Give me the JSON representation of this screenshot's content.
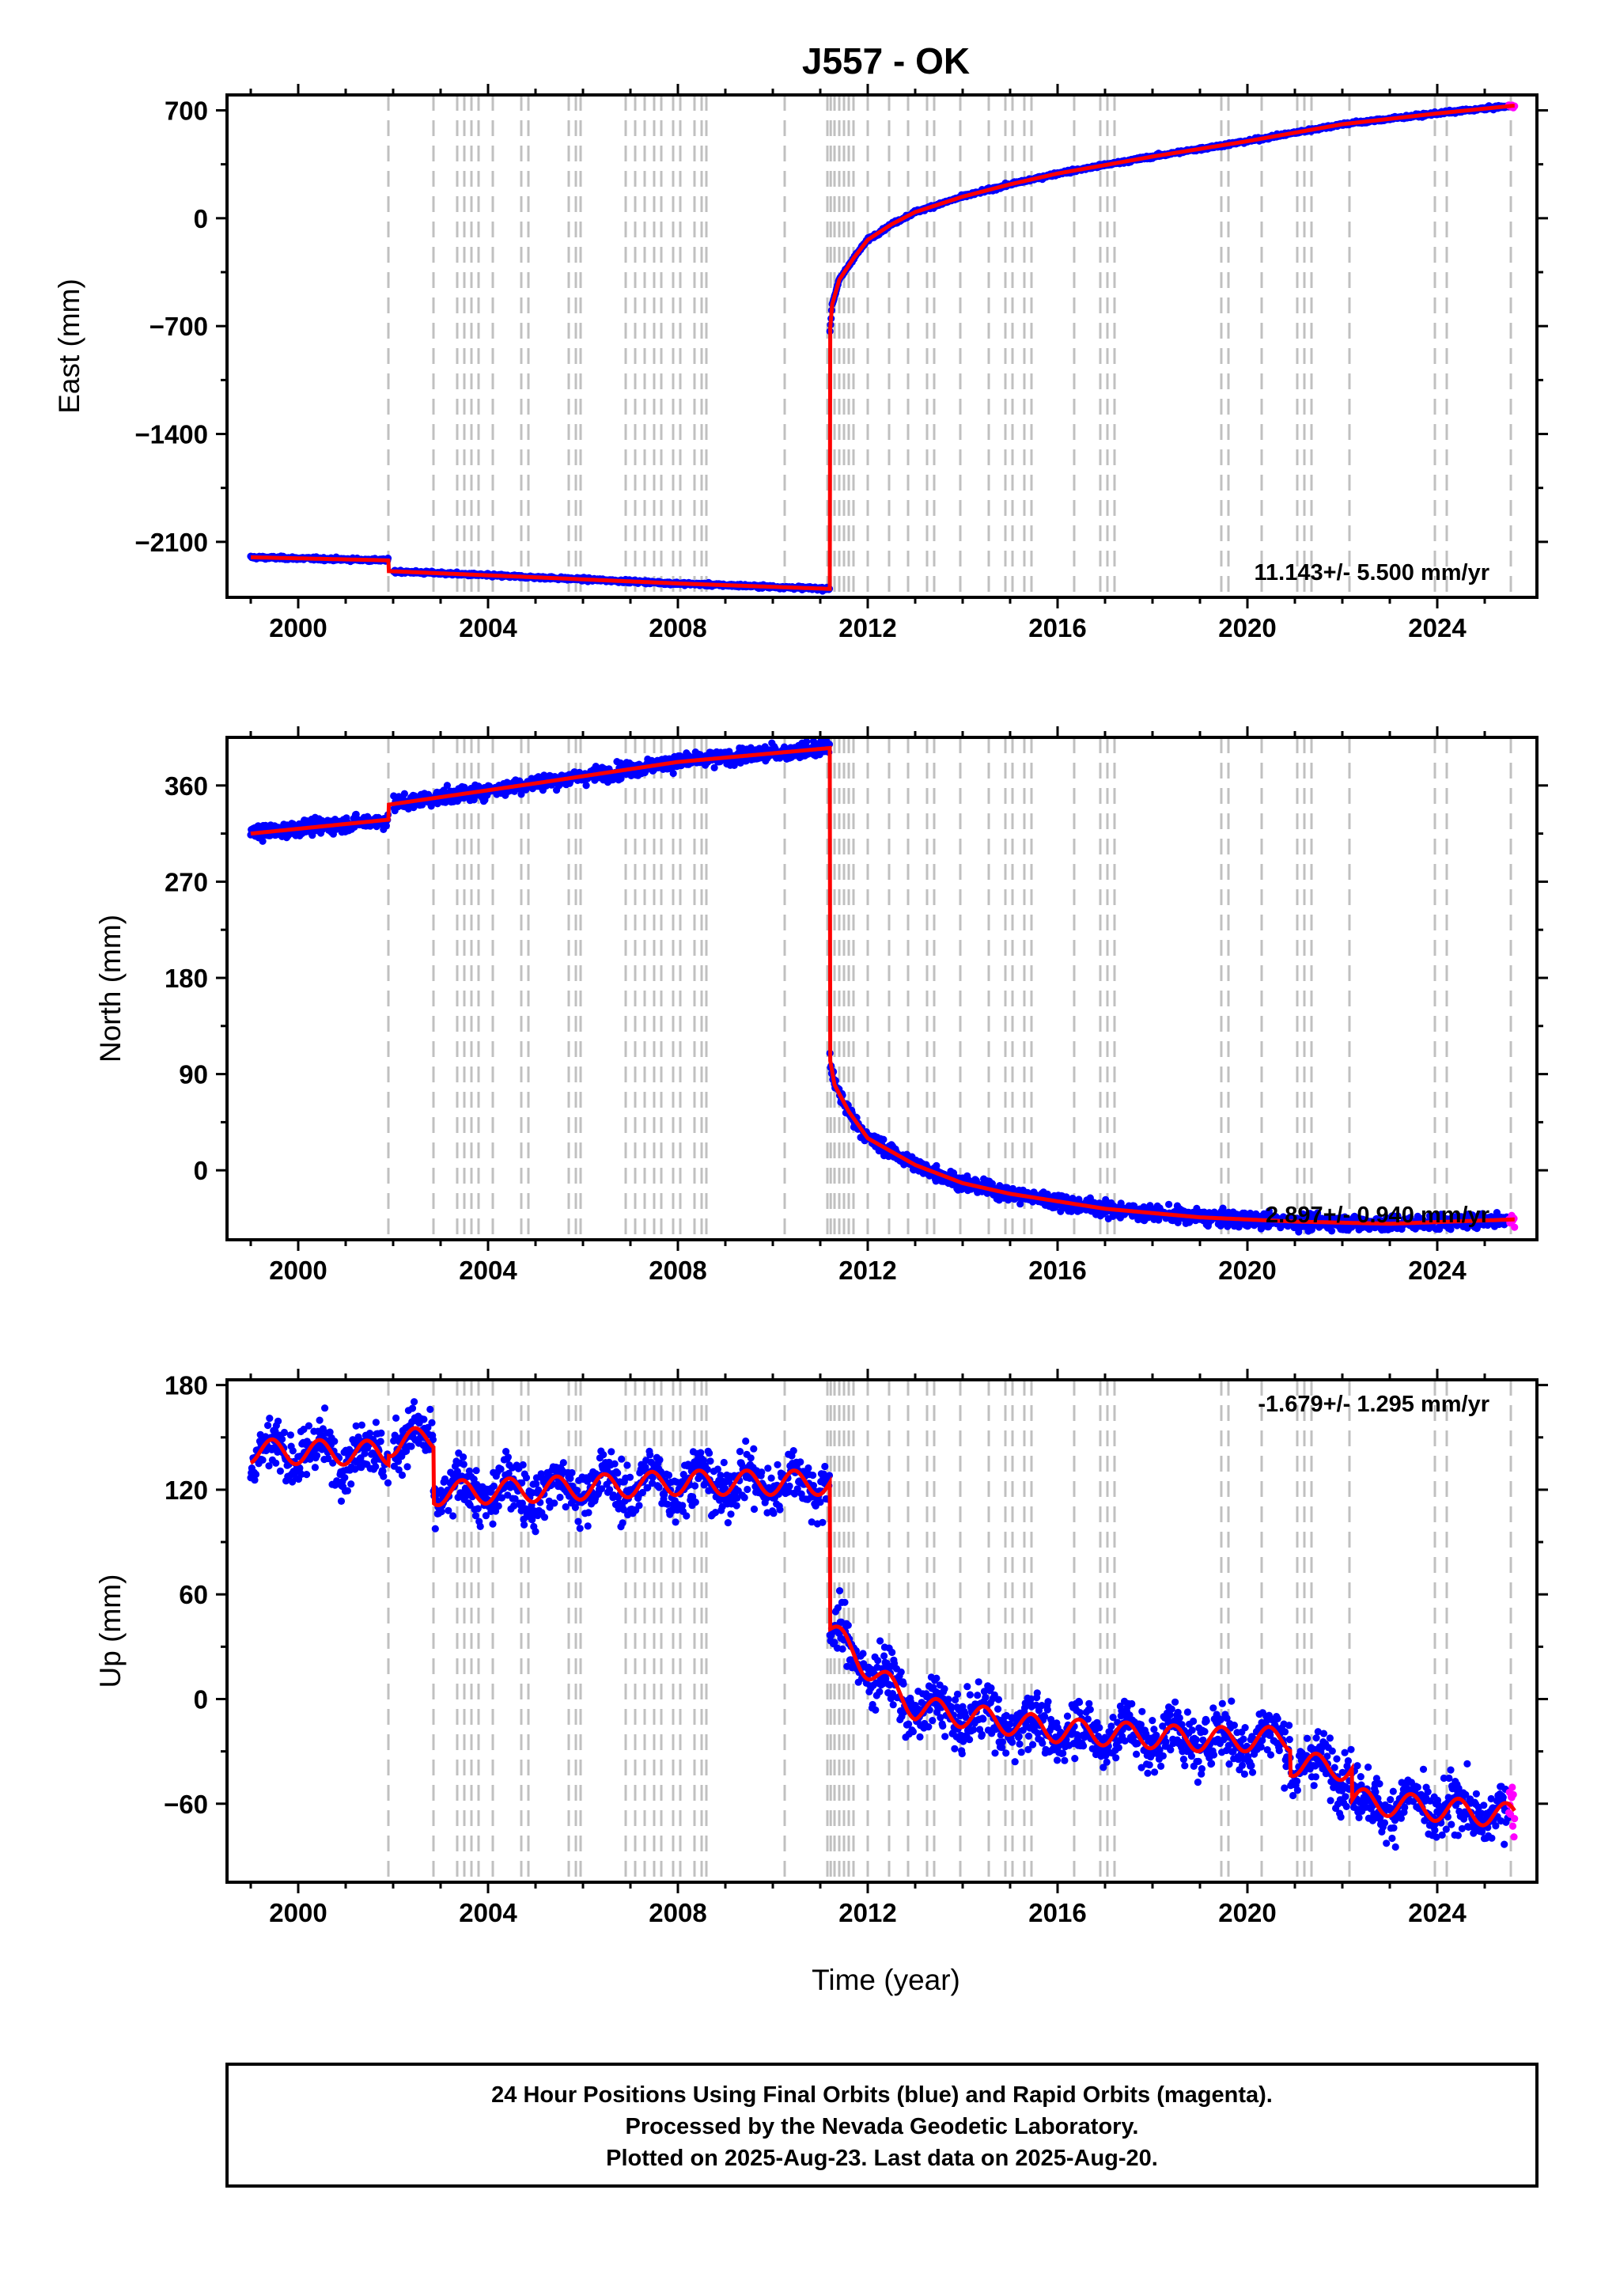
{
  "title": "J557 - OK",
  "xlabel": "Time (year)",
  "x_ticks": [
    2000,
    2004,
    2008,
    2012,
    2016,
    2020,
    2024
  ],
  "footer": {
    "line1": "24 Hour Positions Using Final Orbits (blue) and Rapid Orbits (magenta).",
    "line2": "Processed by the Nevada Geodetic Laboratory.",
    "line3": "Plotted on 2025-Aug-23. Last data on 2025-Aug-20."
  },
  "colors": {
    "final_orbits": "#0000ff",
    "rapid_orbits": "#ff00ff",
    "model": "#ff0000",
    "event_lines": "#c0c0c0"
  },
  "chart_data": [
    {
      "type": "scatter",
      "panel": "east",
      "ylabel": "East (mm)",
      "y_ticks": [
        700,
        0,
        -700,
        -1400,
        -2100
      ],
      "xlim": [
        1998.5,
        2026.1
      ],
      "ylim": [
        -2460,
        800
      ],
      "annotation": "11.143+/- 5.500 mm/yr",
      "grid": false,
      "model_points": [
        [
          1999.0,
          -2200
        ],
        [
          2001.9,
          -2220
        ],
        [
          2001.9,
          -2290
        ],
        [
          2005.0,
          -2330
        ],
        [
          2008.0,
          -2370
        ],
        [
          2011.2,
          -2405
        ],
        [
          2011.2,
          -750
        ],
        [
          2011.25,
          -560
        ],
        [
          2011.4,
          -400
        ],
        [
          2011.7,
          -260
        ],
        [
          2012.0,
          -140
        ],
        [
          2012.5,
          -40
        ],
        [
          2013.0,
          40
        ],
        [
          2014.0,
          140
        ],
        [
          2015.0,
          220
        ],
        [
          2016.0,
          290
        ],
        [
          2018.0,
          400
        ],
        [
          2020.0,
          500
        ],
        [
          2022.0,
          610
        ],
        [
          2024.0,
          680
        ],
        [
          2025.6,
          730
        ]
      ],
      "noise": 7
    },
    {
      "type": "scatter",
      "panel": "north",
      "ylabel": "North (mm)",
      "y_ticks": [
        360,
        270,
        180,
        90,
        0
      ],
      "xlim": [
        1998.5,
        2026.1
      ],
      "ylim": [
        -65,
        405
      ],
      "annotation": "2.897+/- 0.940 mm/yr",
      "grid": false,
      "model_points": [
        [
          1999.0,
          315
        ],
        [
          2001.9,
          328
        ],
        [
          2001.9,
          342
        ],
        [
          2005.0,
          362
        ],
        [
          2008.0,
          382
        ],
        [
          2011.2,
          395
        ],
        [
          2011.2,
          105
        ],
        [
          2011.3,
          80
        ],
        [
          2011.6,
          55
        ],
        [
          2012.0,
          30
        ],
        [
          2013.0,
          5
        ],
        [
          2014.0,
          -12
        ],
        [
          2015.0,
          -22
        ],
        [
          2017.0,
          -36
        ],
        [
          2019.0,
          -44
        ],
        [
          2021.0,
          -48
        ],
        [
          2023.0,
          -50
        ],
        [
          2025.6,
          -46
        ]
      ],
      "noise": 5
    },
    {
      "type": "scatter",
      "panel": "up",
      "ylabel": "Up (mm)",
      "y_ticks": [
        180,
        120,
        60,
        0,
        -60
      ],
      "xlim": [
        1998.5,
        2026.1
      ],
      "ylim": [
        -105,
        183
      ],
      "annotation": "-1.679+/- 1.295 mm/yr",
      "grid": false,
      "model_points": [
        [
          1999.0,
          142
        ],
        [
          2001.9,
          141
        ],
        [
          2001.9,
          146
        ],
        [
          2002.85,
          150
        ],
        [
          2002.85,
          118
        ],
        [
          2005.0,
          120
        ],
        [
          2008.0,
          124
        ],
        [
          2011.2,
          124
        ],
        [
          2011.2,
          40
        ],
        [
          2012.0,
          18
        ],
        [
          2013.0,
          -5
        ],
        [
          2016.0,
          -18
        ],
        [
          2019.0,
          -23
        ],
        [
          2020.9,
          -23
        ],
        [
          2020.9,
          -37
        ],
        [
          2022.2,
          -40
        ],
        [
          2022.2,
          -58
        ],
        [
          2024.0,
          -63
        ],
        [
          2025.6,
          -67
        ]
      ],
      "noise": 11,
      "seasonal": 7
    }
  ]
}
